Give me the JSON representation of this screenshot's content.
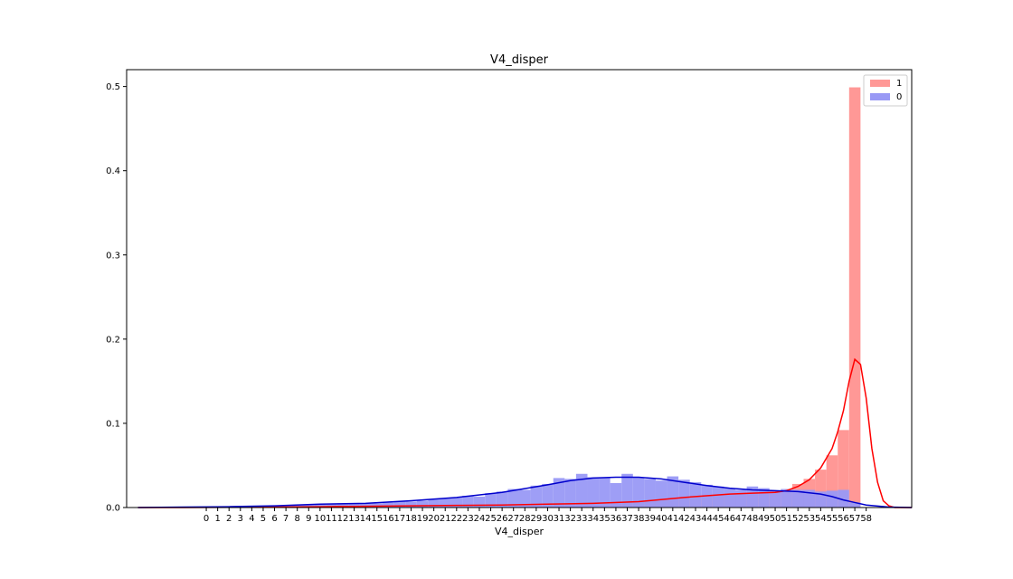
{
  "chart_data": {
    "type": "bar",
    "title": "V4_disper",
    "xlabel": "V4_disper",
    "ylabel": "",
    "xlim": [
      -7,
      62
    ],
    "ylim": [
      0,
      0.52
    ],
    "y_ticks": [
      0.0,
      0.1,
      0.2,
      0.3,
      0.4,
      0.5
    ],
    "y_tick_labels": [
      "0.0",
      "0.1",
      "0.2",
      "0.3",
      "0.4",
      "0.5"
    ],
    "x_ticks": [
      0,
      1,
      2,
      3,
      4,
      5,
      6,
      7,
      8,
      9,
      10,
      11,
      12,
      13,
      14,
      15,
      16,
      17,
      18,
      19,
      20,
      21,
      22,
      23,
      24,
      25,
      26,
      27,
      28,
      29,
      30,
      31,
      32,
      33,
      34,
      35,
      36,
      37,
      38,
      39,
      40,
      41,
      42,
      43,
      44,
      45,
      46,
      47,
      48,
      49,
      50,
      51,
      52,
      53,
      54,
      55,
      56,
      57,
      58
    ],
    "x_tick_labels": [
      "0",
      "1",
      "2",
      "3",
      "4",
      "5",
      "6",
      "7",
      "8",
      "9",
      "10",
      "11",
      "12",
      "13",
      "14",
      "15",
      "16",
      "17",
      "18",
      "19",
      "20",
      "21",
      "22",
      "23",
      "24",
      "25",
      "26",
      "27",
      "28",
      "29",
      "30",
      "31",
      "32",
      "33",
      "34",
      "35",
      "36",
      "37",
      "38",
      "39",
      "40",
      "41",
      "42",
      "43",
      "44",
      "45",
      "46",
      "47",
      "48",
      "49",
      "50",
      "51",
      "52",
      "53",
      "54",
      "55",
      "56",
      "57",
      "58"
    ],
    "grid": false,
    "legend_position": "top-right",
    "series": [
      {
        "name": "1",
        "color": "#ff0000",
        "bar_color": "#ff9896",
        "bin_width": 1,
        "bins_x": [
          24,
          25,
          26,
          27,
          28,
          29,
          30,
          31,
          32,
          33,
          34,
          35,
          36,
          37,
          38,
          39,
          40,
          41,
          42,
          43,
          44,
          45,
          46,
          47,
          48,
          49,
          50,
          51,
          52,
          53,
          54,
          55,
          56,
          57
        ],
        "bins_y": [
          0.001,
          0.001,
          0.001,
          0.001,
          0.002,
          0.002,
          0.002,
          0.003,
          0.003,
          0.004,
          0.004,
          0.004,
          0.005,
          0.006,
          0.007,
          0.008,
          0.009,
          0.011,
          0.012,
          0.013,
          0.014,
          0.015,
          0.016,
          0.016,
          0.017,
          0.018,
          0.019,
          0.021,
          0.028,
          0.034,
          0.045,
          0.062,
          0.092,
          0.499
        ],
        "kde_x": [
          -6,
          -2,
          2,
          6,
          10,
          14,
          18,
          22,
          26,
          30,
          34,
          38,
          42,
          46,
          48,
          50,
          51,
          52,
          53,
          54,
          55,
          55.5,
          56,
          56.5,
          57,
          57.5,
          58,
          58.5,
          59,
          59.5,
          60,
          60.5,
          61,
          62
        ],
        "kde_y": [
          0,
          0,
          0.0002,
          0.0005,
          0.001,
          0.0015,
          0.002,
          0.0025,
          0.003,
          0.004,
          0.005,
          0.007,
          0.012,
          0.016,
          0.017,
          0.018,
          0.02,
          0.025,
          0.033,
          0.047,
          0.07,
          0.09,
          0.115,
          0.15,
          0.176,
          0.17,
          0.13,
          0.07,
          0.03,
          0.008,
          0.002,
          0,
          0,
          0
        ]
      },
      {
        "name": "0",
        "color": "#0000cc",
        "bar_color": "#9999f5",
        "bin_width": 1,
        "bins_x": [
          0,
          1,
          2,
          3,
          4,
          5,
          6,
          7,
          8,
          9,
          10,
          11,
          12,
          13,
          14,
          15,
          16,
          17,
          18,
          19,
          20,
          21,
          22,
          23,
          24,
          25,
          26,
          27,
          28,
          29,
          30,
          31,
          32,
          33,
          34,
          35,
          36,
          37,
          38,
          39,
          40,
          41,
          42,
          43,
          44,
          45,
          46,
          47,
          48,
          49,
          50,
          51,
          52,
          53,
          54,
          55,
          56,
          57
        ],
        "bins_y": [
          0.001,
          0.001,
          0.001,
          0.001,
          0.001,
          0.002,
          0.002,
          0.002,
          0.003,
          0.003,
          0.004,
          0.004,
          0.005,
          0.005,
          0.005,
          0.005,
          0.006,
          0.007,
          0.007,
          0.008,
          0.01,
          0.011,
          0.012,
          0.014,
          0.013,
          0.017,
          0.019,
          0.022,
          0.021,
          0.026,
          0.028,
          0.035,
          0.034,
          0.04,
          0.036,
          0.035,
          0.029,
          0.04,
          0.036,
          0.034,
          0.032,
          0.037,
          0.033,
          0.03,
          0.027,
          0.025,
          0.023,
          0.021,
          0.025,
          0.023,
          0.02,
          0.022,
          0.021,
          0.021,
          0.019,
          0.02,
          0.021,
          0.006
        ],
        "kde_x": [
          -6,
          -2,
          2,
          6,
          10,
          14,
          18,
          22,
          26,
          30,
          32,
          34,
          36,
          38,
          40,
          42,
          44,
          46,
          48,
          50,
          52,
          54,
          55,
          56,
          57,
          58,
          60,
          62
        ],
        "kde_y": [
          0,
          0.0005,
          0.001,
          0.002,
          0.004,
          0.005,
          0.008,
          0.012,
          0.018,
          0.027,
          0.032,
          0.035,
          0.036,
          0.036,
          0.034,
          0.03,
          0.026,
          0.023,
          0.021,
          0.02,
          0.019,
          0.016,
          0.013,
          0.009,
          0.006,
          0.003,
          0.0005,
          0
        ]
      }
    ]
  }
}
